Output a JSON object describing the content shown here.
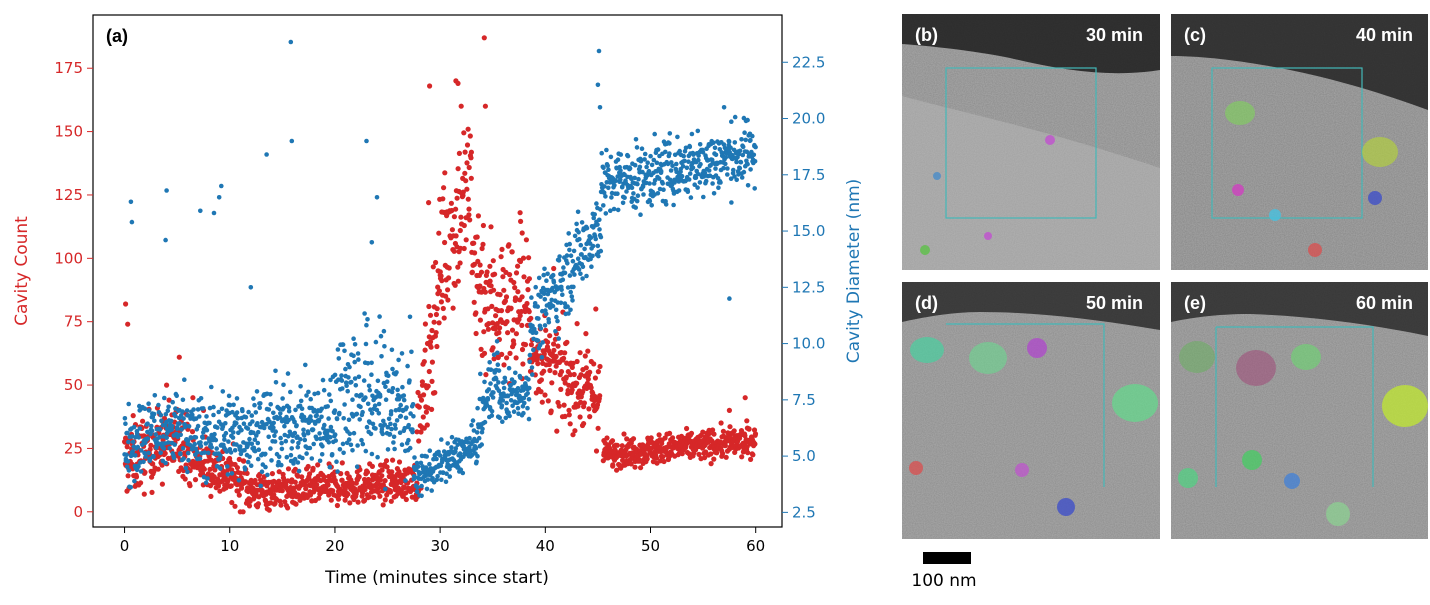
{
  "chart_data": {
    "type": "scatter",
    "panel_label": "(a)",
    "xlabel": "Time (minutes since start)",
    "ylabel_left": "Cavity Count",
    "ylabel_right": "Cavity Diameter (nm)",
    "xlim": [
      -3,
      62.5
    ],
    "ylim_left": [
      -6,
      196
    ],
    "ylim_right": [
      1.85,
      24.6
    ],
    "xticks": [
      0,
      10,
      20,
      30,
      40,
      50,
      60
    ],
    "yticks_left": [
      0,
      25,
      50,
      75,
      100,
      125,
      150,
      175
    ],
    "yticks_right": [
      2.5,
      5.0,
      7.5,
      10.0,
      12.5,
      15.0,
      17.5,
      20.0,
      22.5
    ],
    "grid": false,
    "colors": {
      "count": "#d62728",
      "diameter": "#1f77b4"
    },
    "series": [
      {
        "name": "Cavity Count",
        "axis": "left",
        "color": "#d62728",
        "segments": [
          {
            "t_start": 0,
            "t_end": 6,
            "y_start": 20,
            "y_end": 30,
            "spread": 10,
            "spikes": [
              [
                0.1,
                82
              ],
              [
                0.3,
                74
              ],
              [
                5.2,
                61
              ],
              [
                4.0,
                50
              ]
            ]
          },
          {
            "t_start": 6,
            "t_end": 12,
            "y_start": 22,
            "y_end": 10,
            "spread": 7,
            "spikes": [
              [
                6.5,
                45
              ],
              [
                7.5,
                40
              ]
            ]
          },
          {
            "t_start": 12,
            "t_end": 27.8,
            "y_start": 8,
            "y_end": 12,
            "spread": 5,
            "spikes": []
          },
          {
            "t_start": 27.8,
            "t_end": 30,
            "y_start": 20,
            "y_end": 95,
            "spread": 18,
            "spikes": [
              [
                29.0,
                168
              ],
              [
                28.9,
                122
              ]
            ]
          },
          {
            "t_start": 30,
            "t_end": 33,
            "y_start": 100,
            "y_end": 130,
            "spread": 22,
            "spikes": [
              [
                31.5,
                170
              ],
              [
                31.7,
                169
              ],
              [
                32.0,
                160
              ]
            ]
          },
          {
            "t_start": 33,
            "t_end": 35,
            "y_start": 100,
            "y_end": 80,
            "spread": 22,
            "spikes": [
              [
                34.2,
                187
              ],
              [
                34.3,
                160
              ]
            ]
          },
          {
            "t_start": 35,
            "t_end": 38.5,
            "y_start": 80,
            "y_end": 82,
            "spread": 20,
            "spikes": [
              [
                37.6,
                118
              ],
              [
                37.8,
                110
              ]
            ]
          },
          {
            "t_start": 38.5,
            "t_end": 41,
            "y_start": 65,
            "y_end": 55,
            "spread": 12,
            "spikes": [
              [
                40.8,
                96
              ]
            ]
          },
          {
            "t_start": 41,
            "t_end": 45.2,
            "y_start": 55,
            "y_end": 45,
            "spread": 12,
            "spikes": [
              [
                44.8,
                80
              ]
            ]
          },
          {
            "t_start": 45.5,
            "t_end": 60,
            "y_start": 23,
            "y_end": 28,
            "spread": 4,
            "spikes": [
              [
                59.0,
                45
              ],
              [
                57.5,
                40
              ]
            ]
          }
        ]
      },
      {
        "name": "Cavity Diameter (nm)",
        "axis": "right",
        "color": "#1f77b4",
        "segments": [
          {
            "t_start": 0,
            "t_end": 6,
            "y_start": 5.5,
            "y_end": 6.5,
            "spread": 1.2,
            "spikes": [
              [
                0.6,
                16.3
              ],
              [
                0.7,
                15.4
              ],
              [
                4.0,
                16.8
              ],
              [
                3.9,
                14.6
              ]
            ]
          },
          {
            "t_start": 6,
            "t_end": 20,
            "y_start": 5.8,
            "y_end": 6.5,
            "spread": 1.3,
            "spikes": [
              [
                9.2,
                17.0
              ],
              [
                9.0,
                16.5
              ],
              [
                13.5,
                18.4
              ],
              [
                15.8,
                23.4
              ],
              [
                15.9,
                19.0
              ],
              [
                7.2,
                15.9
              ],
              [
                8.5,
                15.8
              ],
              [
                12.0,
                12.5
              ]
            ]
          },
          {
            "t_start": 20,
            "t_end": 27.5,
            "y_start": 8.0,
            "y_end": 7.0,
            "spread": 2.3,
            "spikes": [
              [
                23.0,
                19.0
              ],
              [
                23.5,
                14.5
              ],
              [
                24.0,
                16.5
              ]
            ]
          },
          {
            "t_start": 27.5,
            "t_end": 33.5,
            "y_start": 4.0,
            "y_end": 5.5,
            "spread": 0.6,
            "spikes": []
          },
          {
            "t_start": 33.5,
            "t_end": 35.5,
            "y_start": 6.0,
            "y_end": 9.0,
            "spread": 1.0,
            "spikes": []
          },
          {
            "t_start": 35.5,
            "t_end": 38.5,
            "y_start": 7.5,
            "y_end": 8.0,
            "spread": 0.8,
            "spikes": []
          },
          {
            "t_start": 38.5,
            "t_end": 45.3,
            "y_start": 10.5,
            "y_end": 15.5,
            "spread": 1.2,
            "spikes": [
              [
                45.1,
                23.0
              ],
              [
                45.0,
                21.5
              ],
              [
                45.2,
                20.5
              ]
            ]
          },
          {
            "t_start": 45.3,
            "t_end": 60,
            "y_start": 17.0,
            "y_end": 18.5,
            "spread": 1.0,
            "spikes": [
              [
                57.0,
                20.5
              ],
              [
                57.5,
                12.0
              ]
            ]
          }
        ]
      }
    ]
  },
  "micrographs": [
    {
      "label": "(b)",
      "time": "30 min"
    },
    {
      "label": "(c)",
      "time": "40 min"
    },
    {
      "label": "(d)",
      "time": "50 min"
    },
    {
      "label": "(e)",
      "time": "60 min"
    }
  ],
  "scale_bar": {
    "label": "100 nm"
  }
}
